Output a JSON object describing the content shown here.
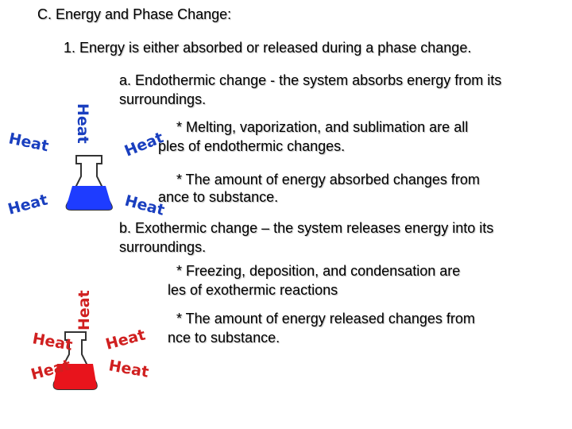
{
  "title": "C. Energy and Phase Change:",
  "point": "1. Energy is either absorbed or released during a phase change.",
  "endothermic": {
    "heading": "a. Endothermic change - the system absorbs energy from its surroundings.",
    "bullets": [
      [
        "* Melting, vaporization, and sublimation are all",
        "ples of endothermic changes."
      ],
      [
        "* The amount of energy absorbed changes from",
        "ance to substance."
      ]
    ],
    "figure_labels": [
      "Heat",
      "Heat",
      "Heat",
      "Heat",
      "Heat"
    ]
  },
  "exothermic": {
    "heading": "b. Exothermic change – the system releases energy into its surroundings.",
    "bullets": [
      [
        "* Freezing, deposition, and condensation are",
        "les of exothermic reactions"
      ],
      [
        "* The amount of energy released changes from",
        "nce to substance."
      ]
    ],
    "figure_labels": [
      "Heat",
      "Heat",
      "Heat",
      "Heat",
      "Heat"
    ]
  }
}
